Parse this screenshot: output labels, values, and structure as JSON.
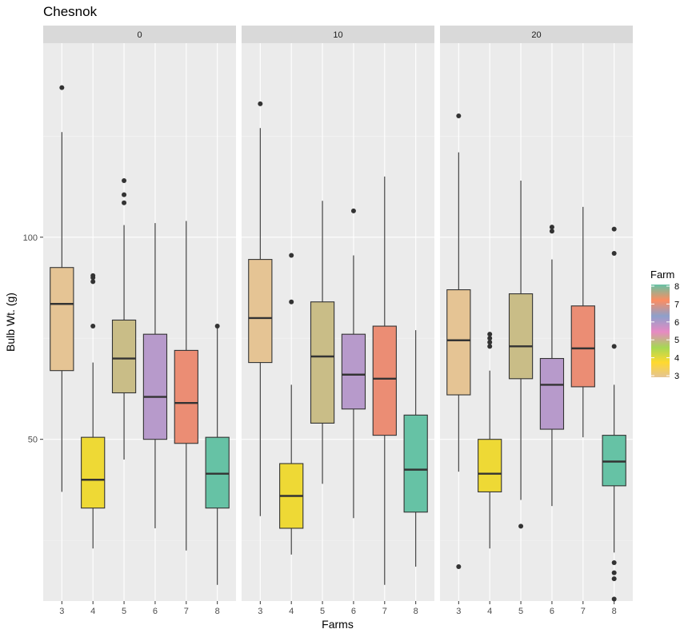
{
  "chart_data": {
    "type": "box",
    "title": "Chesnok",
    "xlabel": "Farms",
    "ylabel": "Bulb Wt. (g)",
    "ylim": [
      10,
      148
    ],
    "yticks": [
      50,
      100
    ],
    "categories": [
      "3",
      "4",
      "5",
      "6",
      "7",
      "8"
    ],
    "facets": [
      {
        "label": "0",
        "boxes": [
          {
            "farm": "3",
            "whisker_low": 37,
            "q1": 67,
            "median": 83.5,
            "q3": 92.5,
            "whisker_high": 126,
            "outliers": [
              137
            ]
          },
          {
            "farm": "4",
            "whisker_low": 23,
            "q1": 33,
            "median": 40,
            "q3": 50.5,
            "whisker_high": 69,
            "outliers": [
              78,
              89,
              90,
              90.5
            ]
          },
          {
            "farm": "5",
            "whisker_low": 45,
            "q1": 61.5,
            "median": 70,
            "q3": 79.5,
            "whisker_high": 103,
            "outliers": [
              108.5,
              110.5,
              114
            ]
          },
          {
            "farm": "6",
            "whisker_low": 28,
            "q1": 50,
            "median": 60.5,
            "q3": 76,
            "whisker_high": 103.5,
            "outliers": []
          },
          {
            "farm": "7",
            "whisker_low": 22.5,
            "q1": 49,
            "median": 59,
            "q3": 72,
            "whisker_high": 104,
            "outliers": []
          },
          {
            "farm": "8",
            "whisker_low": 14,
            "q1": 33,
            "median": 41.5,
            "q3": 50.5,
            "whisker_high": 78,
            "outliers": [
              78
            ]
          }
        ]
      },
      {
        "label": "10",
        "boxes": [
          {
            "farm": "3",
            "whisker_low": 31,
            "q1": 69,
            "median": 80,
            "q3": 94.5,
            "whisker_high": 127,
            "outliers": [
              133
            ]
          },
          {
            "farm": "4",
            "whisker_low": 21.5,
            "q1": 28,
            "median": 36,
            "q3": 44,
            "whisker_high": 63.5,
            "outliers": [
              84,
              95.5
            ]
          },
          {
            "farm": "5",
            "whisker_low": 39,
            "q1": 54,
            "median": 70.5,
            "q3": 84,
            "whisker_high": 109,
            "outliers": []
          },
          {
            "farm": "6",
            "whisker_low": 30.5,
            "q1": 57.5,
            "median": 66,
            "q3": 76,
            "whisker_high": 95.5,
            "outliers": [
              106.5
            ]
          },
          {
            "farm": "7",
            "whisker_low": 14,
            "q1": 51,
            "median": 65,
            "q3": 78,
            "whisker_high": 115,
            "outliers": []
          },
          {
            "farm": "8",
            "whisker_low": 18.5,
            "q1": 32,
            "median": 42.5,
            "q3": 56,
            "whisker_high": 77,
            "outliers": []
          }
        ]
      },
      {
        "label": "20",
        "boxes": [
          {
            "farm": "3",
            "whisker_low": 42,
            "q1": 61,
            "median": 74.5,
            "q3": 87,
            "whisker_high": 121,
            "outliers": [
              18.5,
              130
            ]
          },
          {
            "farm": "4",
            "whisker_low": 23,
            "q1": 37,
            "median": 41.5,
            "q3": 50,
            "whisker_high": 67,
            "outliers": [
              73,
              74,
              75,
              76
            ]
          },
          {
            "farm": "5",
            "whisker_low": 35,
            "q1": 65,
            "median": 73,
            "q3": 86,
            "whisker_high": 114,
            "outliers": [
              28.5
            ]
          },
          {
            "farm": "6",
            "whisker_low": 33.5,
            "q1": 52.5,
            "median": 63.5,
            "q3": 70,
            "whisker_high": 94.5,
            "outliers": [
              101.5,
              102.5
            ]
          },
          {
            "farm": "7",
            "whisker_low": 50.5,
            "q1": 63,
            "median": 72.5,
            "q3": 83,
            "whisker_high": 107.5,
            "outliers": []
          },
          {
            "farm": "8",
            "whisker_low": 22,
            "q1": 38.5,
            "median": 44.5,
            "q3": 51,
            "whisker_high": 63.5,
            "outliers": [
              10.5,
              15.5,
              17,
              19.5,
              73,
              96,
              102
            ]
          }
        ]
      }
    ],
    "fill_colors": {
      "3": "#e5c494",
      "4": "#eed935",
      "5": "#c9bd87",
      "6": "#b79acb",
      "7": "#eb8d74",
      "8": "#66c2a5"
    },
    "panel_background": "#ebebeb",
    "strip_background": "#d9d9d9",
    "grid": true,
    "legend": {
      "title": "Farm",
      "position": "right",
      "labels": [
        "8",
        "7",
        "6",
        "5",
        "4",
        "3"
      ],
      "gradient_colors": [
        "#66c2a5",
        "#fc8d62",
        "#8da0cb",
        "#e78ac3",
        "#a6d854",
        "#ffd92f",
        "#e5c494"
      ]
    }
  }
}
